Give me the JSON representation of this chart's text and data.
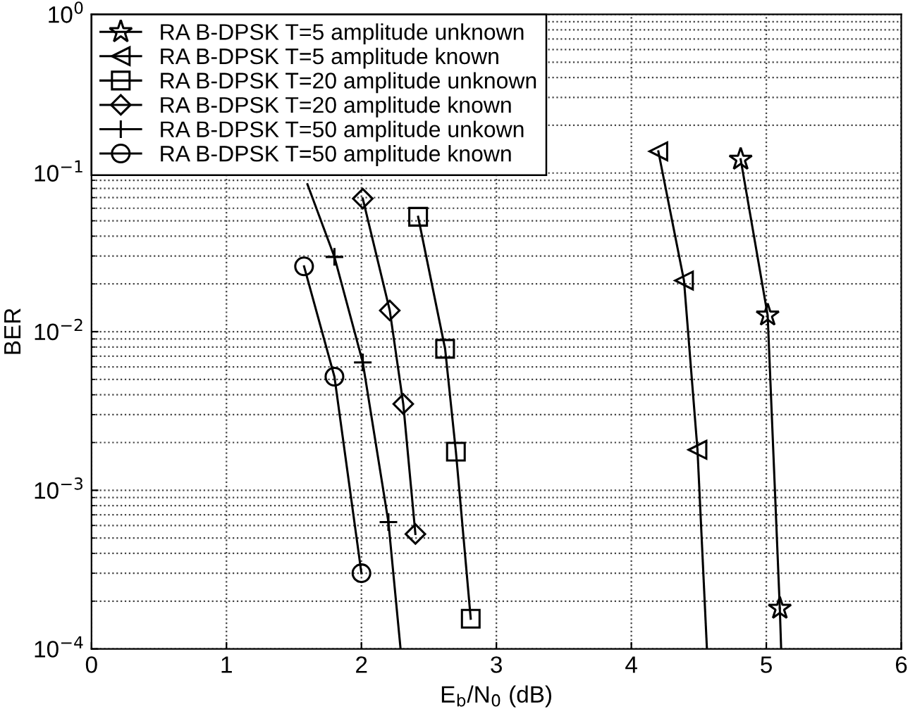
{
  "chart_data": {
    "type": "line",
    "xlabel": "E$_{b}$/N$_{0}$ (dB)",
    "ylabel": "BER",
    "xlim": [
      0,
      6
    ],
    "xticks": [
      0,
      1,
      2,
      3,
      4,
      5,
      6
    ],
    "ylim": [
      0.0001,
      1
    ],
    "yticks": [
      {
        "value": 0.0001,
        "label": "10$^{−4}$"
      },
      {
        "value": 0.001,
        "label": "10$^{−3}$"
      },
      {
        "value": 0.01,
        "label": "10$^{−2}$"
      },
      {
        "value": 0.1,
        "label": "10$^{−1}$"
      },
      {
        "value": 1,
        "label": "10$^{0}$"
      }
    ],
    "log": "y",
    "grid": true,
    "legend": "top left",
    "line_style": "solid",
    "series": [
      {
        "name": "RA B-DPSK T=5 amplitude unknown",
        "color": "#000000",
        "marker": "star",
        "x": [
          4.81,
          5.01,
          5.1
        ],
        "values": [
          0.122,
          0.0127,
          0.00018
        ]
      },
      {
        "name": "RA B-DPSK T=5 amplitude known",
        "color": "#000000",
        "marker": "triangle",
        "x": [
          4.2,
          4.39,
          4.49
        ],
        "values": [
          0.137,
          0.021,
          0.0018
        ]
      },
      {
        "name": "RA B-DPSK T=20 amplitude unknown",
        "color": "#000000",
        "marker": "square",
        "x": [
          2.42,
          2.62,
          2.7,
          2.81
        ],
        "values": [
          0.053,
          0.0078,
          0.00175,
          0.000155
        ]
      },
      {
        "name": "RA B-DPSK T=20 amplitude known",
        "color": "#000000",
        "marker": "diamond",
        "x": [
          2.01,
          2.21,
          2.31,
          2.4
        ],
        "values": [
          0.069,
          0.0136,
          0.0035,
          0.00053
        ]
      },
      {
        "name": "RA B-DPSK T=50 amplitude unkown",
        "color": "#000000",
        "marker": "cross",
        "x": [
          1.8,
          2.01,
          2.2
        ],
        "values": [
          0.0296,
          0.0064,
          0.00063
        ]
      },
      {
        "name": "RA B-DPSK T=50 amplitude known",
        "color": "#000000",
        "marker": "circle",
        "x": [
          1.575,
          1.8,
          2.0
        ],
        "values": [
          0.0258,
          0.0052,
          0.0003
        ]
      },
      {
        "color": "#000000",
        "marker": "none",
        "x": [
          5.1,
          5.11
        ],
        "values": [
          0.00018,
          0.0001
        ]
      },
      {
        "color": "#000000",
        "marker": "none",
        "x": [
          4.49,
          4.56
        ],
        "values": [
          0.0018,
          0.0001
        ]
      },
      {
        "color": "#000000",
        "marker": "none",
        "x": [
          1.6,
          1.8
        ],
        "values": [
          0.085,
          0.0296
        ]
      },
      {
        "color": "#000000",
        "marker": "none",
        "x": [
          2.2,
          2.29
        ],
        "values": [
          0.00063,
          0.0001
        ]
      }
    ]
  }
}
